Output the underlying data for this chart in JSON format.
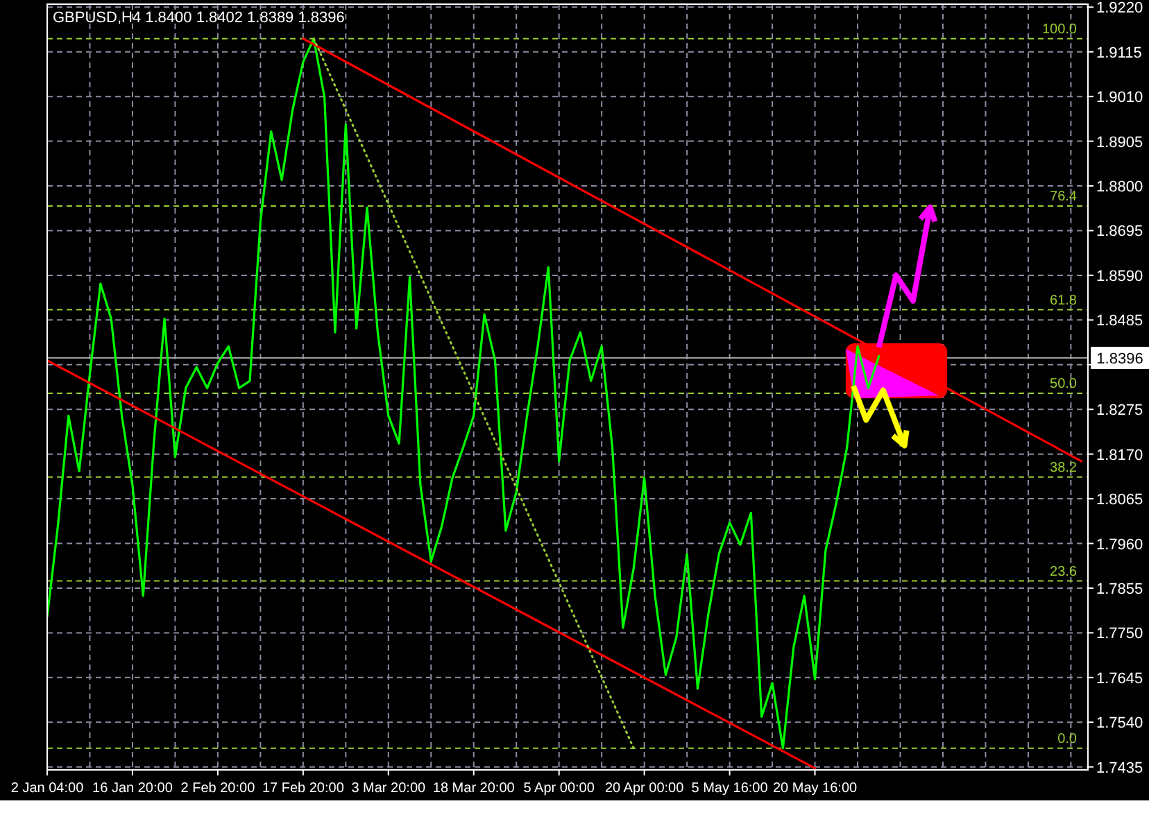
{
  "chart_data": {
    "type": "line",
    "title": "GBPUSD,H4  1.8400 1.8402 1.8389 1.8396",
    "categories": [
      "2 Jan 04:00",
      null,
      null,
      null,
      null,
      null,
      null,
      null,
      "16 Jan 20:00",
      null,
      null,
      null,
      null,
      null,
      null,
      null,
      "2 Feb 20:00",
      null,
      null,
      null,
      null,
      null,
      null,
      null,
      "17 Feb 20:00",
      null,
      null,
      null,
      null,
      null,
      null,
      null,
      "3 Mar 20:00",
      null,
      null,
      null,
      null,
      null,
      null,
      null,
      "18 Mar 20:00",
      null,
      null,
      null,
      null,
      null,
      null,
      null,
      "5 Apr 00:00",
      null,
      null,
      null,
      null,
      null,
      null,
      null,
      "20 Apr 00:00",
      null,
      null,
      null,
      null,
      null,
      null,
      null,
      "5 May 16:00",
      null,
      null,
      null,
      null,
      null,
      null,
      null,
      "20 May 16:00",
      null,
      null,
      null,
      null,
      null,
      null,
      null,
      null,
      null,
      null,
      null,
      null,
      null,
      null,
      null,
      null,
      null,
      null,
      null,
      null,
      null,
      null,
      null,
      null,
      null
    ],
    "ylim": [
      1.7428,
      1.9227
    ],
    "yticks": [
      {
        "value": 1.7435,
        "label": "1.7435"
      },
      {
        "value": 1.754,
        "label": "1.7540"
      },
      {
        "value": 1.7645,
        "label": "1.7645"
      },
      {
        "value": 1.775,
        "label": "1.7750"
      },
      {
        "value": 1.7855,
        "label": "1.7855"
      },
      {
        "value": 1.796,
        "label": "1.7960"
      },
      {
        "value": 1.8065,
        "label": "1.8065"
      },
      {
        "value": 1.817,
        "label": "1.8170"
      },
      {
        "value": 1.8275,
        "label": "1.8275"
      },
      {
        "value": 1.838,
        "label": null
      },
      {
        "value": 1.8485,
        "label": "1.8485"
      },
      {
        "value": 1.859,
        "label": "1.8590"
      },
      {
        "value": 1.8695,
        "label": "1.8695"
      },
      {
        "value": 1.88,
        "label": "1.8800"
      },
      {
        "value": 1.8905,
        "label": "1.8905"
      },
      {
        "value": 1.901,
        "label": "1.9010"
      },
      {
        "value": 1.9115,
        "label": "1.9115"
      },
      {
        "value": 1.922,
        "label": "1.9220"
      }
    ],
    "grid": true,
    "series": [
      {
        "color": "#00ff00",
        "line_style": "solid",
        "values": [
          1.7788,
          1.8,
          1.826,
          1.813,
          1.8358,
          1.857,
          1.8488,
          1.826,
          1.8097,
          1.7837,
          1.8195,
          1.8488,
          1.8163,
          1.8325,
          1.8374,
          1.8325,
          1.8384,
          1.8423,
          1.8325,
          1.8342,
          1.8716,
          1.8928,
          1.8814,
          1.8977,
          1.9091,
          1.9146,
          1.9009,
          1.8456,
          1.8944,
          1.8465,
          1.8749,
          1.8456,
          1.826,
          1.8195,
          1.8586,
          1.8097,
          1.7918,
          1.8,
          1.8114,
          1.8185,
          1.826,
          1.8498,
          1.839,
          1.799,
          1.8081,
          1.826,
          1.8423,
          1.8609,
          1.8153,
          1.839,
          1.8456,
          1.8342,
          1.8423,
          1.8185,
          1.7762,
          1.7902,
          1.8114,
          1.7837,
          1.7651,
          1.7739,
          1.7935,
          1.7619,
          1.7794,
          1.7935,
          1.8009,
          1.7957,
          1.8032,
          1.7553,
          1.7632,
          1.7479,
          1.7716,
          1.7837,
          1.7641,
          1.7944,
          1.8055,
          1.8185,
          1.8423,
          1.8325,
          1.84,
          null,
          null,
          null,
          null,
          null,
          null,
          null,
          null,
          null,
          null,
          null,
          null,
          null,
          null,
          null,
          null,
          null,
          null,
          null
        ]
      },
      {
        "color": "#ff0000",
        "line_style": "solid",
        "values": [
          null,
          null,
          null,
          null,
          null,
          null,
          null,
          null,
          null,
          null,
          null,
          null,
          null,
          null,
          null,
          null,
          null,
          null,
          null,
          null,
          null,
          null,
          null,
          null,
          1.9146,
          null,
          null,
          null,
          null,
          null,
          null,
          null,
          null,
          null,
          null,
          null,
          null,
          null,
          null,
          null,
          null,
          null,
          null,
          null,
          null,
          null,
          null,
          null,
          null,
          null,
          null,
          null,
          null,
          null,
          null,
          null,
          null,
          null,
          null,
          null,
          null,
          null,
          null,
          null,
          null,
          null,
          null,
          null,
          null,
          null,
          null,
          null,
          null,
          null,
          null,
          null,
          null,
          null,
          null,
          null,
          null,
          null,
          null,
          null,
          null,
          null,
          null,
          null,
          null,
          null,
          null,
          null,
          null,
          null,
          null,
          null,
          null,
          1.8153
        ]
      },
      {
        "color": "#ff0000",
        "line_style": "solid",
        "values": [
          1.839,
          null,
          null,
          null,
          null,
          null,
          null,
          null,
          null,
          null,
          null,
          null,
          null,
          null,
          null,
          null,
          null,
          null,
          null,
          null,
          null,
          null,
          null,
          null,
          null,
          null,
          null,
          null,
          null,
          null,
          null,
          null,
          null,
          null,
          null,
          null,
          null,
          null,
          null,
          null,
          null,
          null,
          null,
          null,
          null,
          null,
          null,
          null,
          null,
          null,
          null,
          null,
          null,
          null,
          null,
          null,
          null,
          null,
          null,
          null,
          null,
          null,
          null,
          null,
          null,
          null,
          null,
          null,
          null,
          null,
          null,
          null,
          1.7432,
          null,
          null,
          null,
          null,
          null,
          null,
          null,
          null,
          null,
          null,
          null,
          null,
          null,
          null,
          null,
          null,
          null,
          null,
          null,
          null,
          null,
          null,
          null,
          null,
          null
        ]
      },
      {
        "color": "#9acd32",
        "line_style": "dotted",
        "values": [
          null,
          null,
          null,
          null,
          null,
          null,
          null,
          null,
          null,
          null,
          null,
          null,
          null,
          null,
          null,
          null,
          null,
          null,
          null,
          null,
          null,
          null,
          null,
          null,
          null,
          1.9146,
          null,
          null,
          null,
          null,
          null,
          null,
          null,
          null,
          null,
          null,
          null,
          null,
          null,
          null,
          null,
          null,
          null,
          null,
          null,
          null,
          null,
          null,
          null,
          null,
          null,
          null,
          null,
          null,
          null,
          1.7479,
          null,
          null,
          null,
          null,
          null,
          null,
          null,
          null,
          null,
          null,
          null,
          null,
          null,
          null,
          null,
          null,
          null,
          null,
          null,
          null,
          null,
          null,
          null,
          null,
          null,
          null,
          null,
          null,
          null,
          null,
          null,
          null,
          null,
          null,
          null,
          null,
          null,
          null,
          null,
          null,
          null,
          null
        ]
      }
    ],
    "ref_lines": [
      {
        "axis": "y",
        "value": 1.9146,
        "color": "#9acd32",
        "line_style": "dashed"
      },
      {
        "axis": "y",
        "value": 1.8753,
        "color": "#9acd32",
        "line_style": "dashed"
      },
      {
        "axis": "y",
        "value": 1.8509,
        "color": "#9acd32",
        "line_style": "dashed"
      },
      {
        "axis": "y",
        "value": 1.8313,
        "color": "#9acd32",
        "line_style": "dashed"
      },
      {
        "axis": "y",
        "value": 1.8116,
        "color": "#9acd32",
        "line_style": "dashed"
      },
      {
        "axis": "y",
        "value": 1.7872,
        "color": "#9acd32",
        "line_style": "dashed"
      },
      {
        "axis": "y",
        "value": 1.7479,
        "color": "#9acd32",
        "line_style": "dashed"
      },
      {
        "axis": "y",
        "value": 1.8396,
        "label": "1.8396",
        "color": "#a0a0a0",
        "line_style": "solid"
      }
    ],
    "annotations": [
      {
        "text": "100.0",
        "y": 1.9146
      },
      {
        "text": "76.4",
        "y": 1.8753
      },
      {
        "text": "61.8",
        "y": 1.8509
      },
      {
        "text": "50.0",
        "y": 1.8313
      },
      {
        "text": "38.2",
        "y": 1.8116
      },
      {
        "text": "23.6",
        "y": 1.7872
      },
      {
        "text": "0.0",
        "y": 1.7479
      }
    ]
  }
}
